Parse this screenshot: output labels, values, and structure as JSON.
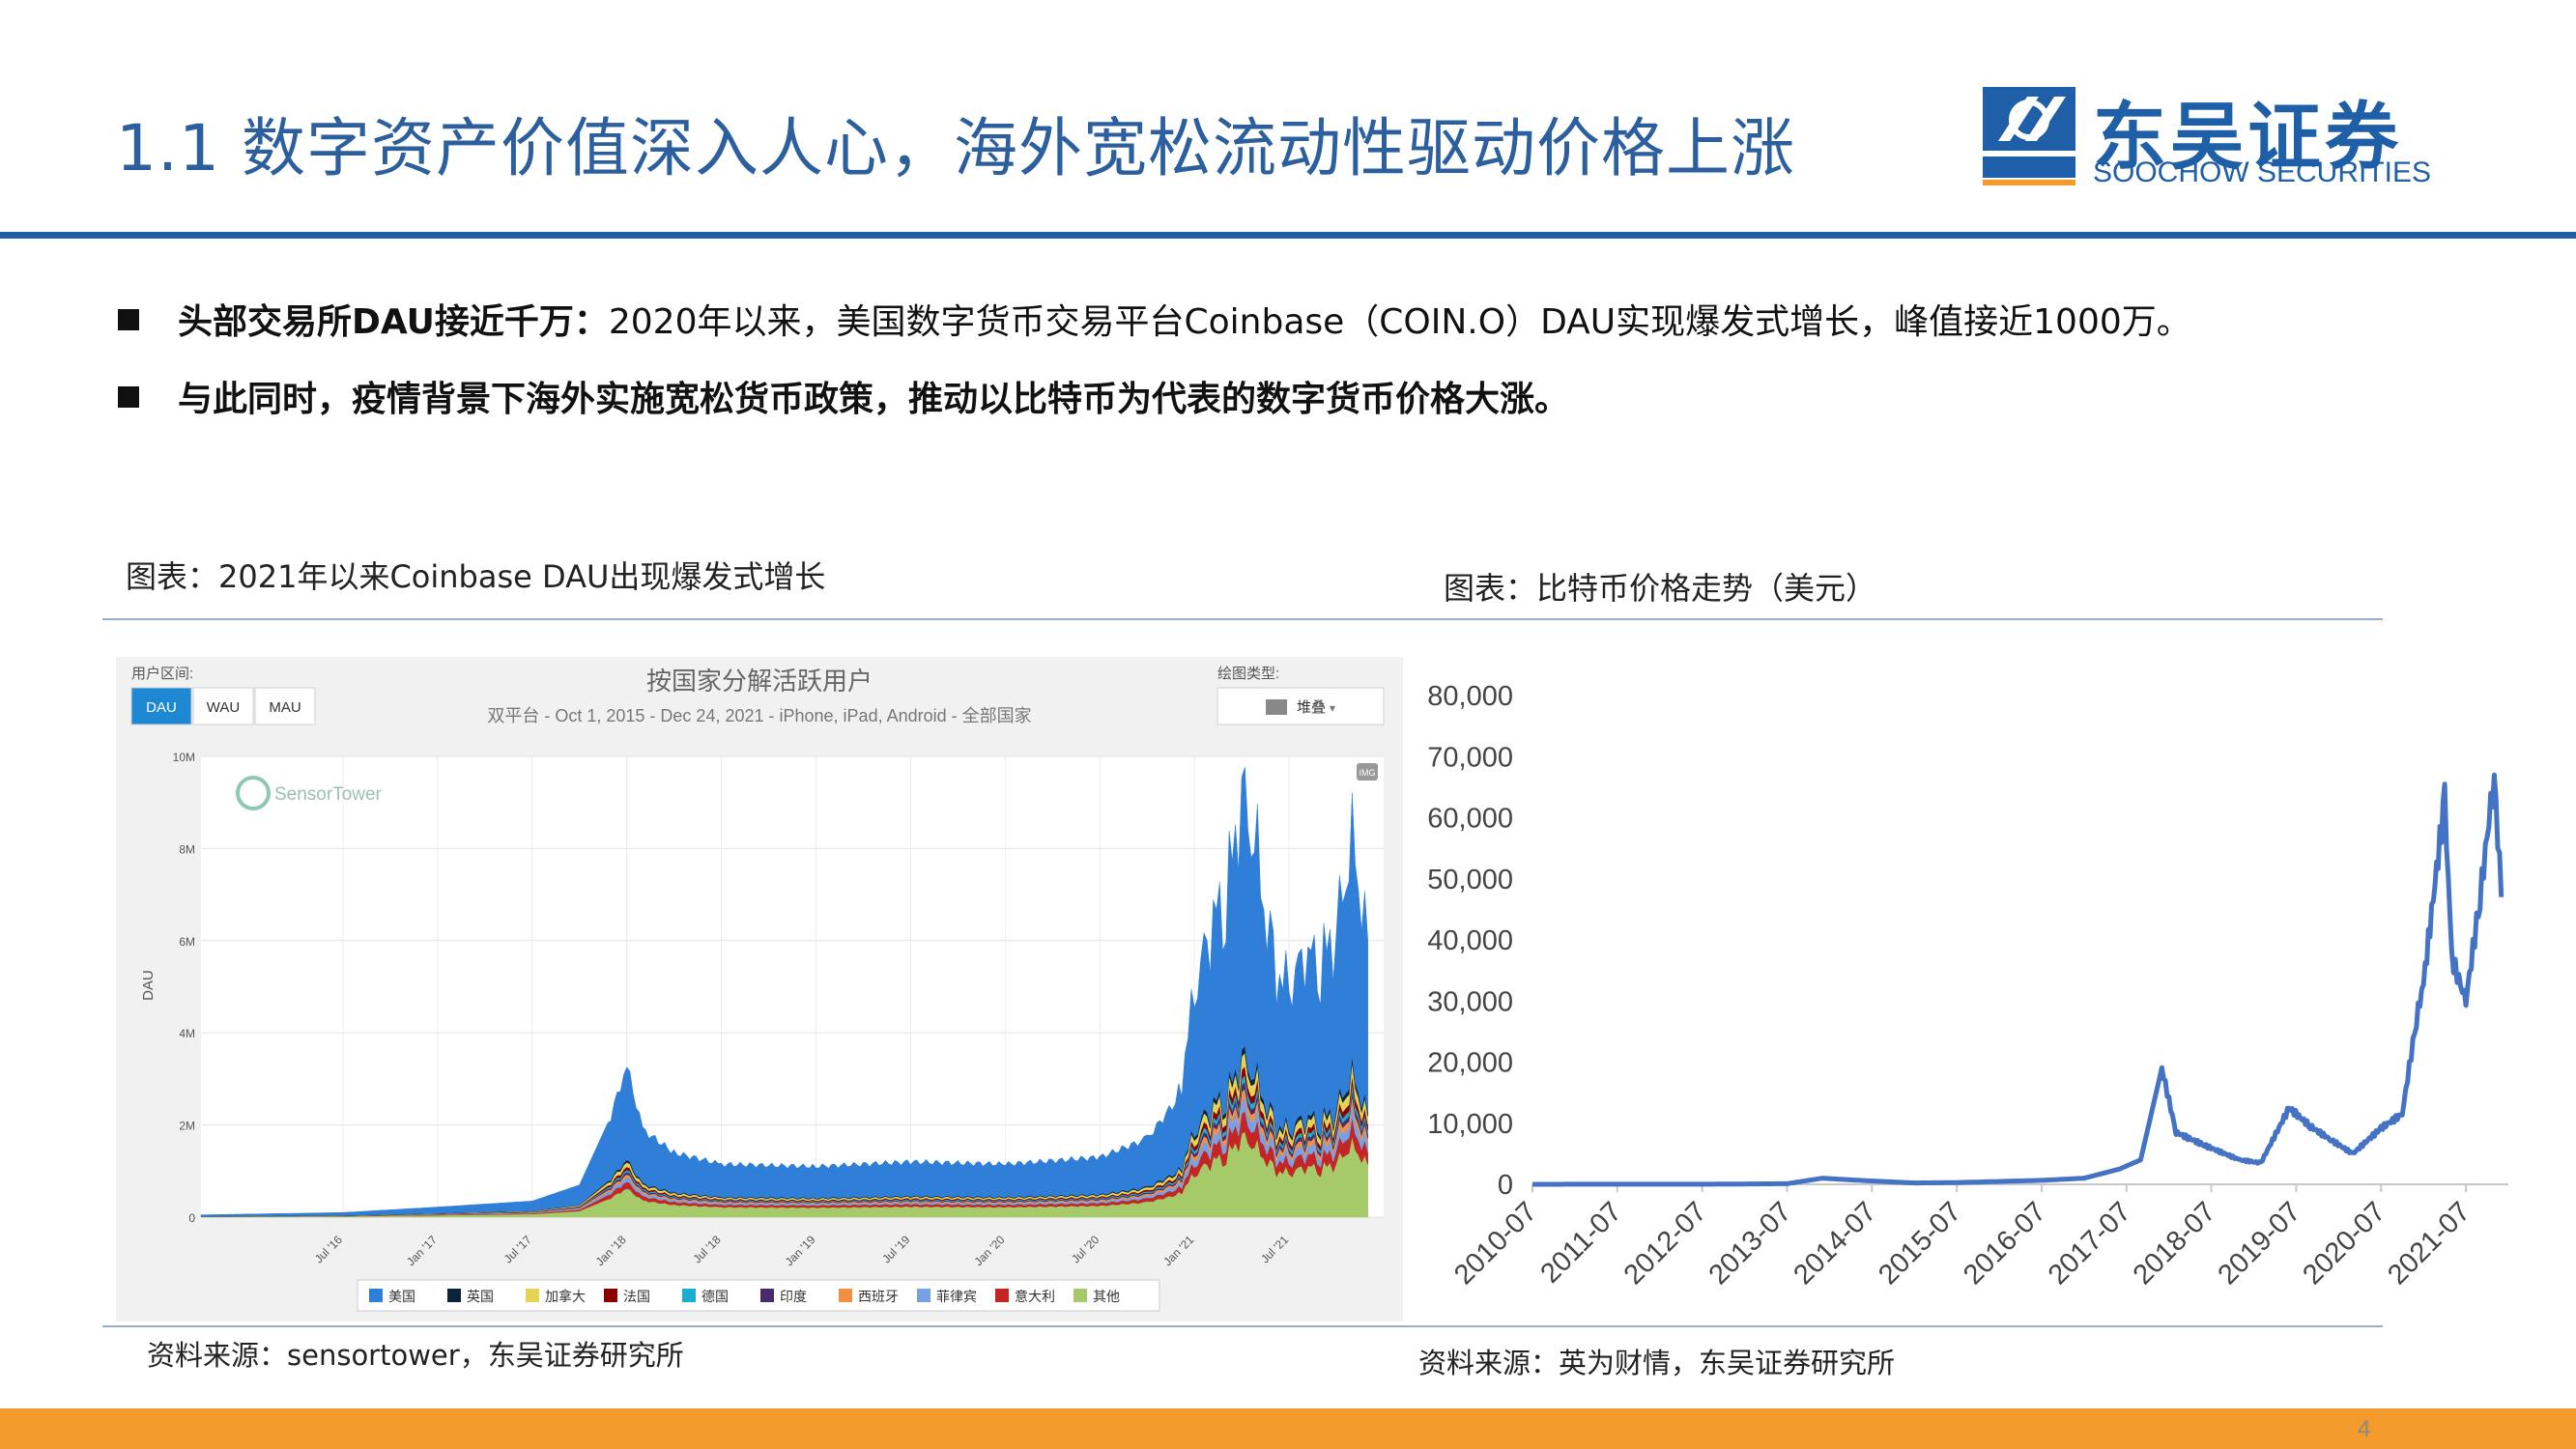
{
  "header": {
    "title": "1.1 数字资产价值深入人心，海外宽松流动性驱动价格上涨",
    "logo_cn": "东吴证券",
    "logo_en": "SOOCHOW SECURITIES",
    "logo_mark": "SCS"
  },
  "bullets": [
    {
      "bold": "头部交易所DAU接近千万：",
      "text": "2020年以来，美国数字货币交易平台Coinbase（COIN.O）DAU实现爆发式增长，峰值接近1000万。"
    },
    {
      "bold": "与此同时，疫情背景下海外实施宽松货币政策，推动以比特币为代表的数字货币价格大涨。",
      "text": ""
    }
  ],
  "left_figure": {
    "caption": "图表：2021年以来Coinbase DAU出现爆发式增长",
    "source": "资料来源：sensortower，东吴证券研究所",
    "panel": {
      "user_range_label": "用户区间:",
      "buttons": [
        "DAU",
        "WAU",
        "MAU"
      ],
      "active_button": "DAU",
      "chart_type_label": "绘图类型:",
      "chart_type_value": "堆叠",
      "title": "按国家分解活跃用户",
      "subtitle": "双平台 - Oct 1, 2015 - Dec 24, 2021 - iPhone, iPad, Android - 全部国家",
      "watermark": "SensorTower",
      "img_badge": "IMG"
    }
  },
  "right_figure": {
    "caption": "图表：比特币价格走势（美元）",
    "source": "资料来源：英为财情，东吴证券研究所"
  },
  "chart_data": [
    {
      "type": "area",
      "title": "按国家分解活跃用户",
      "ylabel": "DAU",
      "ylim": [
        0,
        10000000
      ],
      "y_ticks": [
        "0",
        "2M",
        "4M",
        "6M",
        "8M",
        "10M"
      ],
      "x_ticks": [
        "Jul '16",
        "Jan '17",
        "Jul '17",
        "Jan '18",
        "Jul '18",
        "Jan '19",
        "Jul '19",
        "Jan '20",
        "Jul '20",
        "Jan '21",
        "Jul '21"
      ],
      "x": [
        "2015-10",
        "2016-07",
        "2017-01",
        "2017-07",
        "2017-10",
        "2017-12",
        "2018-01",
        "2018-02",
        "2018-04",
        "2018-07",
        "2019-01",
        "2019-07",
        "2020-01",
        "2020-07",
        "2020-10",
        "2020-12",
        "2021-01",
        "2021-02",
        "2021-03",
        "2021-04",
        "2021-05",
        "2021-06",
        "2021-07",
        "2021-08",
        "2021-09",
        "2021-10",
        "2021-11",
        "2021-12"
      ],
      "total": [
        50000,
        100000,
        220000,
        350000,
        700000,
        2200000,
        3300000,
        1900000,
        1400000,
        1150000,
        1100000,
        1200000,
        1150000,
        1300000,
        1700000,
        2600000,
        4800000,
        6400000,
        6900000,
        9300000,
        7700000,
        5400000,
        4900000,
        5800000,
        5500000,
        6300000,
        8100000,
        6000000
      ],
      "series": [
        {
          "name": "美国",
          "color": "#2f7ed8"
        },
        {
          "name": "英国",
          "color": "#0d233a"
        },
        {
          "name": "加拿大",
          "color": "#e4d354"
        },
        {
          "name": "法国",
          "color": "#8b0000"
        },
        {
          "name": "德国",
          "color": "#1aadce"
        },
        {
          "name": "印度",
          "color": "#492970"
        },
        {
          "name": "西班牙",
          "color": "#f28f43"
        },
        {
          "name": "菲律宾",
          "color": "#77a1e5"
        },
        {
          "name": "意大利",
          "color": "#c42525"
        },
        {
          "name": "其他",
          "color": "#a6c96a"
        }
      ]
    },
    {
      "type": "line",
      "title": "",
      "ylim": [
        0,
        80000
      ],
      "y_ticks": [
        "0",
        "10,000",
        "20,000",
        "30,000",
        "40,000",
        "50,000",
        "60,000",
        "70,000",
        "80,000"
      ],
      "x_ticks": [
        "2010-07",
        "2011-07",
        "2012-07",
        "2013-07",
        "2014-07",
        "2015-07",
        "2016-07",
        "2017-07",
        "2018-07",
        "2019-07",
        "2020-07",
        "2021-07"
      ],
      "x": [
        "2010-07",
        "2011-06",
        "2012-07",
        "2013-07",
        "2013-12",
        "2014-06",
        "2015-01",
        "2015-07",
        "2016-07",
        "2017-01",
        "2017-06",
        "2017-09",
        "2017-12",
        "2018-02",
        "2018-06",
        "2018-11",
        "2019-02",
        "2019-06",
        "2019-09",
        "2019-12",
        "2020-03",
        "2020-07",
        "2020-10",
        "2020-12",
        "2021-01",
        "2021-04",
        "2021-05",
        "2021-07",
        "2021-09",
        "2021-11",
        "2021-12"
      ],
      "values": [
        0,
        20,
        10,
        100,
        1000,
        600,
        220,
        280,
        650,
        1000,
        2500,
        4000,
        19000,
        8500,
        6400,
        4000,
        3500,
        12500,
        9500,
        7200,
        5000,
        9200,
        11500,
        27000,
        33000,
        63000,
        37000,
        30000,
        47000,
        67000,
        47000
      ],
      "line_color": "#4472c4"
    }
  ]
}
